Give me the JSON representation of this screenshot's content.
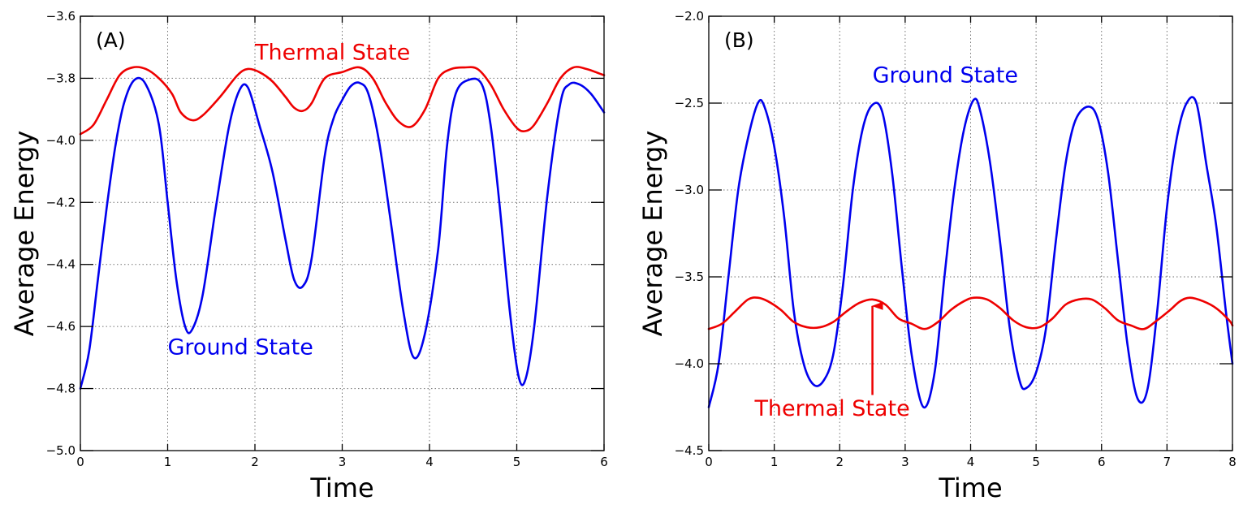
{
  "chart_data": [
    {
      "type": "line",
      "panel_label": "(A)",
      "xlabel": "Time",
      "ylabel": "Average Energy",
      "xlim": [
        0,
        6
      ],
      "ylim": [
        -5.0,
        -3.6
      ],
      "xticks": [
        0,
        1,
        2,
        3,
        4,
        5,
        6
      ],
      "xtick_labels": [
        "0",
        "1",
        "2",
        "3",
        "4",
        "5",
        "6"
      ],
      "yticks": [
        -5.0,
        -4.8,
        -4.6,
        -4.4,
        -4.2,
        -4.0,
        -3.8,
        -3.6
      ],
      "ytick_labels": [
        "−5.0",
        "−4.8",
        "−4.6",
        "−4.4",
        "−4.2",
        "−4.0",
        "−3.8",
        "−3.6"
      ],
      "grid": true,
      "series": [
        {
          "name": "Ground State",
          "color": "#0000ee",
          "x": [
            0,
            0.1,
            0.2,
            0.3,
            0.4,
            0.5,
            0.62,
            0.75,
            0.9,
            1.0,
            1.1,
            1.2,
            1.28,
            1.4,
            1.55,
            1.7,
            1.82,
            1.92,
            2.05,
            2.2,
            2.35,
            2.45,
            2.55,
            2.65,
            2.8,
            2.9,
            3.0,
            3.1,
            3.2,
            3.3,
            3.42,
            3.55,
            3.7,
            3.82,
            3.95,
            4.1,
            4.2,
            4.3,
            4.45,
            4.6,
            4.7,
            4.8,
            4.92,
            5.02,
            5.1,
            5.2,
            5.35,
            5.5,
            5.6,
            5.72,
            5.85,
            6.0
          ],
          "y": [
            -4.8,
            -4.68,
            -4.45,
            -4.22,
            -4.02,
            -3.88,
            -3.805,
            -3.82,
            -3.95,
            -4.2,
            -4.45,
            -4.6,
            -4.61,
            -4.5,
            -4.22,
            -3.96,
            -3.84,
            -3.83,
            -3.95,
            -4.1,
            -4.32,
            -4.45,
            -4.47,
            -4.38,
            -4.05,
            -3.93,
            -3.87,
            -3.825,
            -3.815,
            -3.85,
            -4.0,
            -4.25,
            -4.55,
            -4.7,
            -4.62,
            -4.35,
            -4.02,
            -3.85,
            -3.805,
            -3.82,
            -3.95,
            -4.2,
            -4.55,
            -4.76,
            -4.77,
            -4.6,
            -4.18,
            -3.88,
            -3.82,
            -3.82,
            -3.85,
            -3.91
          ]
        },
        {
          "name": "Thermal State",
          "color": "#ee0000",
          "x": [
            0,
            0.15,
            0.3,
            0.45,
            0.6,
            0.75,
            0.9,
            1.05,
            1.15,
            1.28,
            1.4,
            1.6,
            1.8,
            1.92,
            2.05,
            2.2,
            2.35,
            2.45,
            2.55,
            2.65,
            2.8,
            3.0,
            3.2,
            3.35,
            3.5,
            3.65,
            3.8,
            3.95,
            4.1,
            4.25,
            4.4,
            4.55,
            4.7,
            4.85,
            5.0,
            5.1,
            5.2,
            5.35,
            5.5,
            5.65,
            5.8,
            5.95,
            6.0
          ],
          "y": [
            -3.98,
            -3.95,
            -3.87,
            -3.79,
            -3.765,
            -3.77,
            -3.8,
            -3.85,
            -3.91,
            -3.935,
            -3.92,
            -3.86,
            -3.79,
            -3.77,
            -3.78,
            -3.81,
            -3.86,
            -3.895,
            -3.905,
            -3.88,
            -3.8,
            -3.78,
            -3.765,
            -3.8,
            -3.88,
            -3.94,
            -3.955,
            -3.9,
            -3.8,
            -3.77,
            -3.765,
            -3.77,
            -3.82,
            -3.9,
            -3.96,
            -3.97,
            -3.95,
            -3.88,
            -3.8,
            -3.765,
            -3.77,
            -3.785,
            -3.79
          ]
        }
      ],
      "annotations": [
        {
          "text": "Thermal State",
          "color": "#ee0000",
          "x": 2.0,
          "y": -3.74
        },
        {
          "text": "Ground State",
          "color": "#0000ee",
          "x": 1.0,
          "y": -4.69
        }
      ]
    },
    {
      "type": "line",
      "panel_label": "(B)",
      "xlabel": "Time",
      "ylabel": "Average Energy",
      "xlim": [
        0,
        8
      ],
      "ylim": [
        -4.5,
        -2.0
      ],
      "xticks": [
        0,
        1,
        2,
        3,
        4,
        5,
        6,
        7,
        8
      ],
      "xtick_labels": [
        "0",
        "1",
        "2",
        "3",
        "4",
        "5",
        "6",
        "7",
        "8"
      ],
      "yticks": [
        -4.5,
        -4.0,
        -3.5,
        -3.0,
        -2.5,
        -2.0
      ],
      "ytick_labels": [
        "−4.5",
        "−4.0",
        "−3.5",
        "−3.0",
        "−2.5",
        "−2.0"
      ],
      "grid": true,
      "series": [
        {
          "name": "Ground State",
          "color": "#0000ee",
          "x": [
            0,
            0.15,
            0.3,
            0.45,
            0.6,
            0.75,
            0.85,
            1.0,
            1.15,
            1.3,
            1.45,
            1.6,
            1.75,
            1.9,
            2.05,
            2.2,
            2.35,
            2.5,
            2.65,
            2.8,
            2.95,
            3.1,
            3.28,
            3.45,
            3.6,
            3.75,
            3.9,
            4.05,
            4.15,
            4.3,
            4.45,
            4.6,
            4.75,
            4.85,
            5.0,
            5.15,
            5.3,
            5.45,
            5.6,
            5.8,
            5.95,
            6.1,
            6.25,
            6.4,
            6.55,
            6.7,
            6.85,
            7.0,
            7.15,
            7.3,
            7.45,
            7.6,
            7.75,
            7.9,
            8.0
          ],
          "y": [
            -4.25,
            -4.0,
            -3.5,
            -3.0,
            -2.7,
            -2.5,
            -2.52,
            -2.75,
            -3.15,
            -3.7,
            -4.0,
            -4.12,
            -4.1,
            -3.95,
            -3.55,
            -3.0,
            -2.65,
            -2.51,
            -2.55,
            -2.9,
            -3.45,
            -3.95,
            -4.25,
            -4.05,
            -3.5,
            -3.0,
            -2.65,
            -2.48,
            -2.55,
            -2.85,
            -3.3,
            -3.8,
            -4.1,
            -4.14,
            -4.05,
            -3.8,
            -3.3,
            -2.85,
            -2.6,
            -2.52,
            -2.6,
            -2.9,
            -3.4,
            -3.9,
            -4.2,
            -4.15,
            -3.7,
            -3.1,
            -2.7,
            -2.5,
            -2.5,
            -2.85,
            -3.2,
            -3.7,
            -4.0
          ]
        },
        {
          "name": "Thermal State",
          "color": "#ee0000",
          "x": [
            0,
            0.2,
            0.4,
            0.6,
            0.75,
            0.9,
            1.1,
            1.3,
            1.5,
            1.7,
            1.9,
            2.1,
            2.3,
            2.5,
            2.7,
            2.9,
            3.1,
            3.3,
            3.5,
            3.7,
            3.9,
            4.05,
            4.25,
            4.45,
            4.65,
            4.85,
            5.05,
            5.25,
            5.45,
            5.65,
            5.85,
            6.05,
            6.25,
            6.45,
            6.65,
            6.85,
            7.05,
            7.2,
            7.35,
            7.55,
            7.75,
            7.95,
            8.0
          ],
          "y": [
            -3.8,
            -3.77,
            -3.7,
            -3.63,
            -3.62,
            -3.64,
            -3.69,
            -3.76,
            -3.79,
            -3.79,
            -3.76,
            -3.7,
            -3.65,
            -3.63,
            -3.66,
            -3.74,
            -3.77,
            -3.8,
            -3.76,
            -3.69,
            -3.64,
            -3.62,
            -3.63,
            -3.68,
            -3.75,
            -3.79,
            -3.79,
            -3.74,
            -3.66,
            -3.63,
            -3.63,
            -3.68,
            -3.75,
            -3.78,
            -3.8,
            -3.75,
            -3.69,
            -3.64,
            -3.62,
            -3.64,
            -3.68,
            -3.75,
            -3.78
          ]
        }
      ],
      "annotations": [
        {
          "text": "Ground State",
          "color": "#0000ee",
          "x": 2.5,
          "y": -2.38
        },
        {
          "text": "Thermal State",
          "color": "#ee0000",
          "x": 0.7,
          "y": -4.3,
          "arrow_to": [
            2.5,
            -3.63
          ],
          "arrow_from": [
            2.5,
            -4.18
          ]
        }
      ]
    }
  ]
}
